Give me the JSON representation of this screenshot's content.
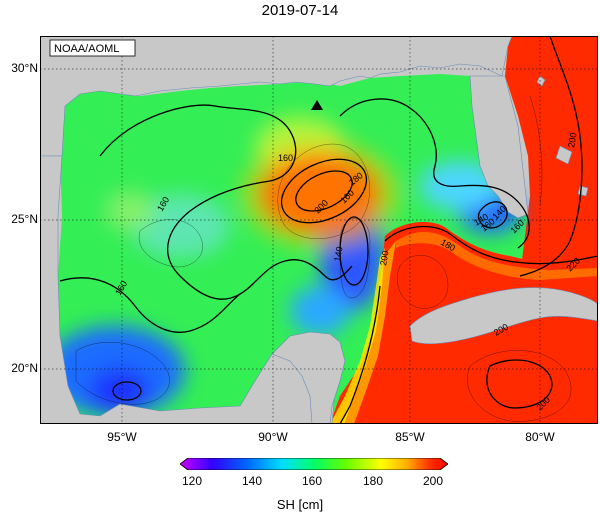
{
  "title": "2019-07-14",
  "attribution": "NOAA/AOML",
  "lat_labels": [
    "30°N",
    "25°N",
    "20°N"
  ],
  "lon_labels": [
    "95°W",
    "90°W",
    "85°W",
    "80°W"
  ],
  "contour_labels": [
    "160",
    "160",
    "160",
    "180",
    "200",
    "160",
    "140",
    "140",
    "200",
    "180",
    "160",
    "140",
    "160",
    "200",
    "200",
    "200",
    "220"
  ],
  "colorbar": {
    "ticks": [
      "120",
      "140",
      "160",
      "180",
      "200"
    ],
    "label": "SH [cm]",
    "colors": [
      "#cc00ff",
      "#3300ff",
      "#0066ff",
      "#00ddff",
      "#00ff66",
      "#66ff00",
      "#ffff00",
      "#ffaa00",
      "#ff3300",
      "#ff0000"
    ]
  },
  "colors": {
    "land": "#c8c8c8",
    "ocean_base": "#33ee55",
    "ring": "#ff1a00",
    "loop": "#ff2a00",
    "marker": "#000000"
  }
}
